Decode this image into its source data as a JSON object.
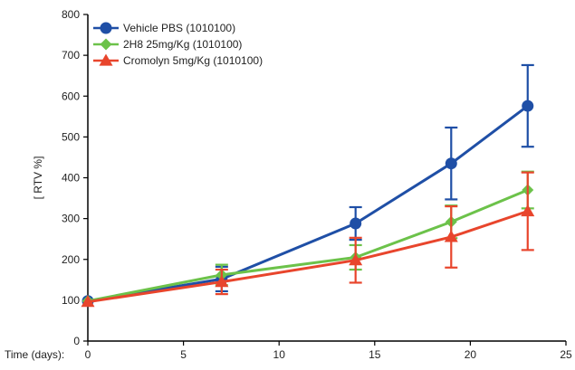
{
  "chart_data": {
    "type": "line",
    "xlabel": "Time (days):",
    "ylabel": "[ RTV  %]",
    "x_ticks": [
      0,
      5,
      10,
      15,
      20,
      25
    ],
    "y_ticks": [
      0,
      100,
      200,
      300,
      400,
      500,
      600,
      700,
      800
    ],
    "xlim": [
      0,
      25
    ],
    "ylim": [
      0,
      800
    ],
    "grid": false,
    "legend_position": "top-left",
    "series": [
      {
        "name": "Vehicle PBS (1010100)",
        "color": "#1f4fa6",
        "marker": "circle",
        "points": [
          {
            "x": 0,
            "y": 98,
            "err": 0
          },
          {
            "x": 7,
            "y": 152,
            "err": 30
          },
          {
            "x": 14,
            "y": 288,
            "err": 40
          },
          {
            "x": 19,
            "y": 435,
            "err": 88
          },
          {
            "x": 23,
            "y": 576,
            "err": 100
          }
        ]
      },
      {
        "name": "2H8 25mg/Kg (1010100)",
        "color": "#6cc24a",
        "marker": "diamond",
        "points": [
          {
            "x": 0,
            "y": 98,
            "err": 0
          },
          {
            "x": 7,
            "y": 162,
            "err": 25
          },
          {
            "x": 14,
            "y": 205,
            "err": 30
          },
          {
            "x": 19,
            "y": 292,
            "err": 40
          },
          {
            "x": 23,
            "y": 370,
            "err": 45
          }
        ]
      },
      {
        "name": "Cromolyn 5mg/Kg (1010100)",
        "color": "#e8452c",
        "marker": "triangle",
        "points": [
          {
            "x": 0,
            "y": 96,
            "err": 0
          },
          {
            "x": 7,
            "y": 145,
            "err": 30
          },
          {
            "x": 14,
            "y": 198,
            "err": 55
          },
          {
            "x": 19,
            "y": 255,
            "err": 75
          },
          {
            "x": 23,
            "y": 318,
            "err": 95
          }
        ]
      }
    ]
  }
}
